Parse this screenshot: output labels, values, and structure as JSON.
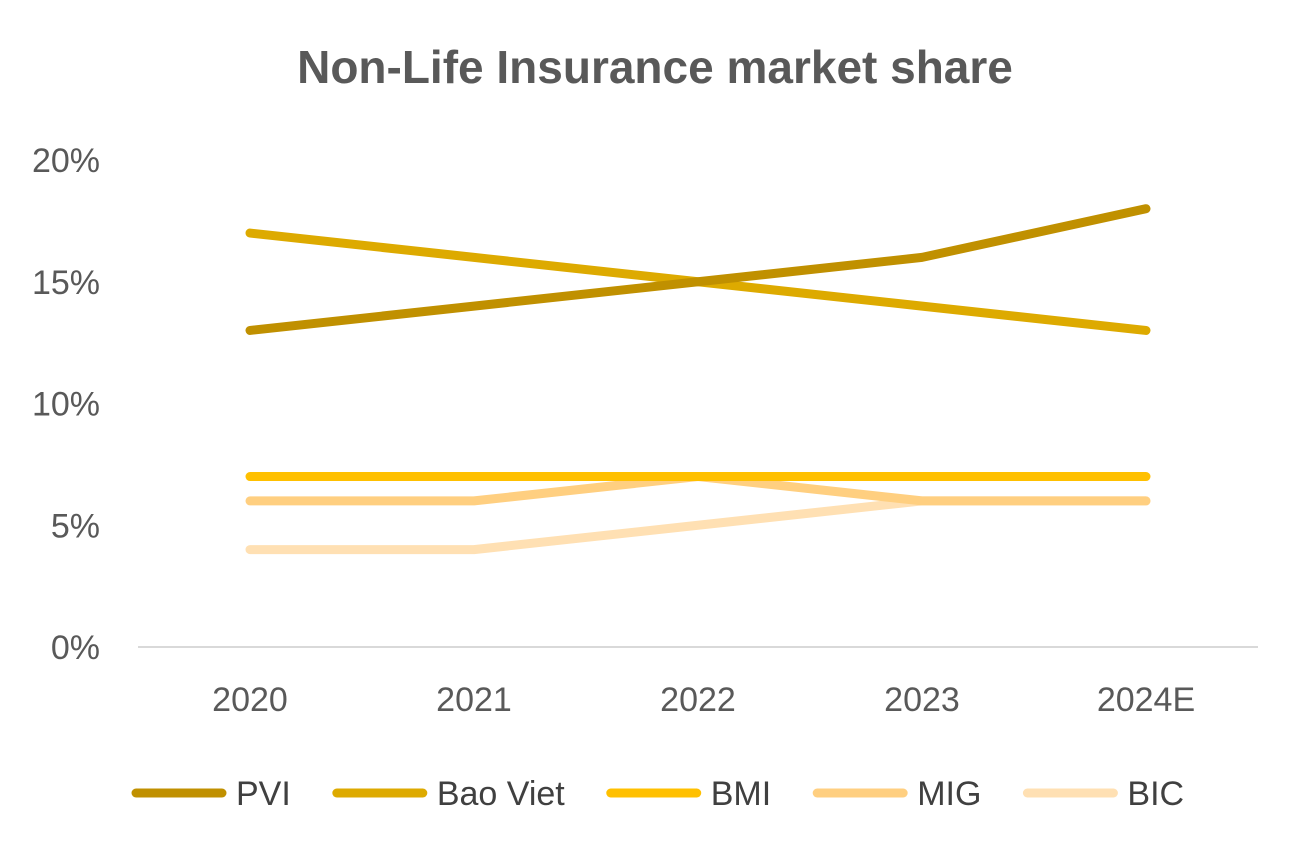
{
  "chart_data": {
    "type": "line",
    "title": "Non-Life Insurance market share",
    "xlabel": "",
    "ylabel": "",
    "categories": [
      "2020",
      "2021",
      "2022",
      "2023",
      "2024E"
    ],
    "y_ticks": [
      "0%",
      "5%",
      "10%",
      "15%",
      "20%"
    ],
    "ylim": [
      0,
      20
    ],
    "value_unit": "%",
    "grid": false,
    "legend_position": "bottom",
    "series": [
      {
        "name": "PVI",
        "color": "#C09000",
        "values": [
          13,
          14,
          15,
          16,
          18
        ]
      },
      {
        "name": "Bao Viet",
        "color": "#DDAA00",
        "values": [
          17,
          16,
          15,
          14,
          13
        ]
      },
      {
        "name": "BMI",
        "color": "#FFC000",
        "values": [
          7,
          7,
          7,
          7,
          7
        ]
      },
      {
        "name": "MIG",
        "color": "#FFCF80",
        "values": [
          6,
          6,
          7,
          6,
          6
        ]
      },
      {
        "name": "BIC",
        "color": "#FFE0B3",
        "values": [
          4,
          4,
          5,
          6,
          6
        ]
      }
    ]
  }
}
